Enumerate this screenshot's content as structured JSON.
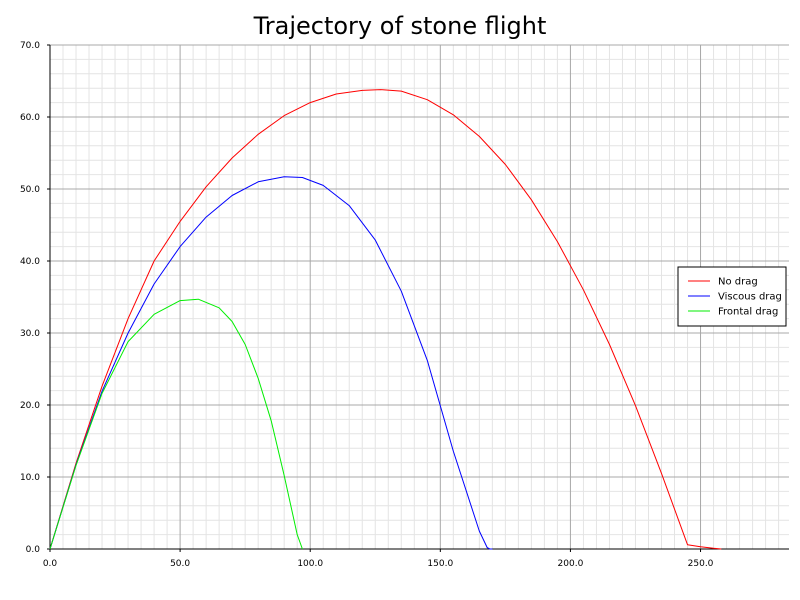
{
  "chart_data": {
    "type": "line",
    "title": "Trajectory of stone flight",
    "xlabel": "",
    "ylabel": "",
    "xlim": [
      0,
      284
    ],
    "ylim": [
      0,
      70
    ],
    "x_ticks": [
      "0.0",
      "50.0",
      "100.0",
      "150.0",
      "200.0",
      "250.0"
    ],
    "y_ticks": [
      "0.0",
      "10.0",
      "20.0",
      "30.0",
      "40.0",
      "50.0",
      "60.0",
      "70.0"
    ],
    "grid": true,
    "legend_position": "right",
    "series": [
      {
        "name": "No drag",
        "color": "#ff0000",
        "x": [
          0,
          10,
          20,
          30,
          40,
          50,
          60,
          70,
          80,
          90,
          100,
          110,
          120,
          127,
          135,
          145,
          155,
          165,
          175,
          185,
          195,
          205,
          215,
          225,
          235,
          245,
          250,
          255,
          258
        ],
        "y": [
          0,
          11.9,
          22.6,
          32.0,
          40.0,
          45.5,
          50.3,
          54.3,
          57.6,
          60.2,
          62.0,
          63.2,
          63.7,
          63.8,
          63.6,
          62.4,
          60.3,
          57.3,
          53.4,
          48.5,
          42.7,
          36.0,
          28.4,
          19.9,
          10.5,
          0.6,
          0.3,
          0.1,
          0
        ]
      },
      {
        "name": "Viscous drag",
        "color": "#0000ff",
        "x": [
          0,
          10,
          20,
          30,
          40,
          50,
          60,
          70,
          80,
          90,
          97,
          105,
          115,
          125,
          135,
          145,
          155,
          165,
          168,
          169,
          170
        ],
        "y": [
          0,
          11.7,
          21.9,
          30.0,
          36.8,
          42.0,
          46.1,
          49.1,
          51.0,
          51.7,
          51.6,
          50.5,
          47.7,
          42.9,
          35.8,
          26.2,
          13.6,
          2.5,
          0.2,
          0,
          0
        ]
      },
      {
        "name": "Frontal drag",
        "color": "#00ee00",
        "x": [
          0,
          10,
          20,
          30,
          40,
          50,
          57,
          65,
          70,
          75,
          80,
          85,
          90,
          95,
          97
        ],
        "y": [
          0,
          11.6,
          21.6,
          28.8,
          32.6,
          34.5,
          34.7,
          33.5,
          31.6,
          28.4,
          23.7,
          17.8,
          10.2,
          2.0,
          0
        ]
      }
    ]
  }
}
